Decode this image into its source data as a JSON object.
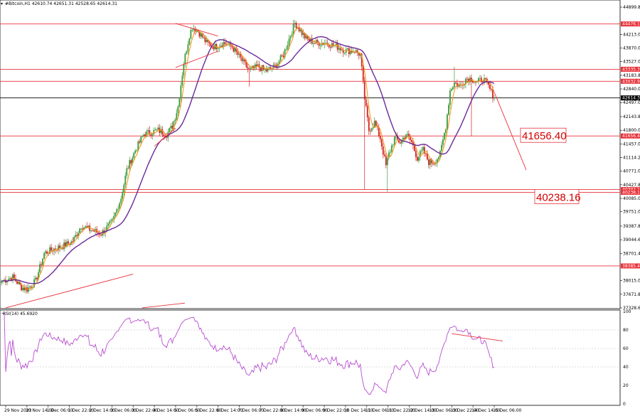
{
  "header": {
    "symbol_line": "#Bitcoin,H1  42610.74 42651.31 42528.65 42614.31"
  },
  "colors": {
    "up": "#3a9a3a",
    "down": "#d42020",
    "level": "#e8323a",
    "ma_fast": "#f39a1e",
    "ma_slow": "#6a2a9a",
    "rsi": "#b84ed0",
    "grid_rsi": "#bdbdbd",
    "current": "#000000"
  },
  "chart_data": [
    {
      "type": "candlestick",
      "ylim": [
        37328.6,
        44899.8
      ],
      "y_ticks": [
        "44899.80",
        "44556.00",
        "44213.00",
        "43870.00",
        "43527.00",
        "43183.80",
        "42840.00",
        "42497.00",
        "42143.80",
        "41800.00",
        "41457.00",
        "41114.20",
        "40771.00",
        "40427.80",
        "40085.00",
        "39751.00",
        "39387.80",
        "39044.60",
        "38701.40",
        "38358.20",
        "38015.00",
        "37671.80",
        "37328.60"
      ],
      "x_ticks": [
        "29 Nov 2023",
        "30 Nov 14:00",
        "1 Dec 06:00",
        "1 Dec 22:00",
        "2 Dec 14:00",
        "3 Dec 06:00",
        "3 Dec 22:00",
        "4 Dec 14:00",
        "5 Dec 06:00",
        "5 Dec 22:00",
        "6 Dec 14:00",
        "7 Dec 06:00",
        "7 Dec 22:00",
        "8 Dec 14:00",
        "9 Dec 06:00",
        "9 Dec 22:00",
        "10 Dec 14:00",
        "11 Dec 06:00",
        "11 Dec 22:00",
        "12 Dec 14:00",
        "13 Dec 06:00",
        "13 Dec 22:00",
        "14 Dec 14:00",
        "15 Dec 06:00"
      ],
      "levels": [
        {
          "value": 44476.11,
          "label": "44476.11"
        },
        {
          "value": 43335.34,
          "label": "43335.34"
        },
        {
          "value": 43032.95,
          "label": "43032.95"
        },
        {
          "value": 41656.4,
          "label": "41656.40",
          "big": true
        },
        {
          "value": 40307.18,
          "label": "40307.18"
        },
        {
          "value": 40238.16,
          "label": "40238.16",
          "big": true
        },
        {
          "value": 38385.44,
          "label": "38385.44"
        }
      ],
      "current_price": {
        "value": 42614.31,
        "label": "42614.31"
      },
      "big_labels": [
        "41656.40",
        "40238.16"
      ],
      "price_anchors": [
        [
          0,
          38000
        ],
        [
          8,
          38100
        ],
        [
          14,
          37850
        ],
        [
          18,
          37800
        ],
        [
          24,
          38000
        ],
        [
          30,
          38700
        ],
        [
          36,
          38800
        ],
        [
          44,
          38900
        ],
        [
          50,
          39000
        ],
        [
          56,
          39400
        ],
        [
          62,
          39300
        ],
        [
          70,
          39200
        ],
        [
          78,
          39500
        ],
        [
          84,
          40100
        ],
        [
          88,
          40800
        ],
        [
          94,
          41300
        ],
        [
          100,
          41700
        ],
        [
          110,
          41800
        ],
        [
          116,
          41700
        ],
        [
          120,
          41900
        ],
        [
          124,
          42400
        ],
        [
          128,
          43500
        ],
        [
          132,
          44200
        ],
        [
          134,
          44400
        ],
        [
          138,
          44300
        ],
        [
          144,
          44000
        ],
        [
          150,
          43900
        ],
        [
          156,
          44000
        ],
        [
          162,
          43900
        ],
        [
          168,
          43600
        ],
        [
          174,
          43300
        ],
        [
          180,
          43400
        ],
        [
          186,
          43300
        ],
        [
          192,
          43400
        ],
        [
          198,
          43700
        ],
        [
          203,
          44200
        ],
        [
          206,
          44500
        ],
        [
          210,
          44300
        ],
        [
          214,
          44100
        ],
        [
          220,
          44000
        ],
        [
          228,
          44000
        ],
        [
          236,
          43900
        ],
        [
          242,
          43800
        ],
        [
          248,
          43800
        ],
        [
          252,
          43700
        ],
        [
          255,
          42600
        ],
        [
          258,
          41800
        ],
        [
          262,
          42000
        ],
        [
          266,
          41600
        ],
        [
          270,
          40900
        ],
        [
          272,
          41200
        ],
        [
          276,
          41600
        ],
        [
          280,
          41500
        ],
        [
          284,
          41700
        ],
        [
          288,
          41500
        ],
        [
          292,
          41100
        ],
        [
          296,
          41300
        ],
        [
          300,
          41000
        ],
        [
          304,
          41000
        ],
        [
          308,
          41200
        ],
        [
          312,
          41900
        ],
        [
          315,
          42800
        ],
        [
          318,
          43000
        ],
        [
          322,
          42900
        ],
        [
          326,
          43100
        ],
        [
          330,
          43100
        ],
        [
          334,
          43000
        ],
        [
          338,
          43100
        ],
        [
          342,
          42900
        ],
        [
          346,
          42614
        ]
      ],
      "wicks": [
        [
          255,
          40300
        ],
        [
          271,
          40250
        ],
        [
          174,
          42900
        ],
        [
          330,
          41650
        ],
        [
          318,
          43400
        ]
      ],
      "fast_ma_period": 5,
      "slow_ma_period": 24,
      "annotations": [
        {
          "type": "line",
          "from": [
            "5 Dec 06:00",
            44490
          ],
          "to": [
            "6 Dec 14:00",
            44170
          ]
        },
        {
          "type": "line",
          "from": [
            "5 Dec 06:00",
            43380
          ],
          "to": [
            "6 Dec 14:00",
            43790
          ]
        },
        {
          "type": "line",
          "from": [
            "4 Dec 14:00",
            41400
          ],
          "to": [
            "5 Dec 06:00",
            41850
          ]
        },
        {
          "type": "line",
          "from": [
            "29 Nov 2023",
            37330
          ],
          "to": [
            "3 Dec 22:00",
            38180
          ]
        },
        {
          "type": "line",
          "from": [
            "15 Dec 06:00",
            42760
          ],
          "to": [
            "16 Dec 06:00",
            40800
          ]
        }
      ]
    },
    {
      "type": "line",
      "header": "RSI(14) 45.6920",
      "ylim": [
        0,
        100
      ],
      "y_ticks": [
        "100",
        "80",
        "60",
        "40",
        "20",
        "0"
      ],
      "levels": [
        80,
        60,
        40
      ],
      "period": 14,
      "annotation": {
        "type": "line",
        "from": [
          "13 Dec 22:00",
          76
        ],
        "to": [
          "15 Dec 06:00",
          68
        ]
      }
    }
  ]
}
